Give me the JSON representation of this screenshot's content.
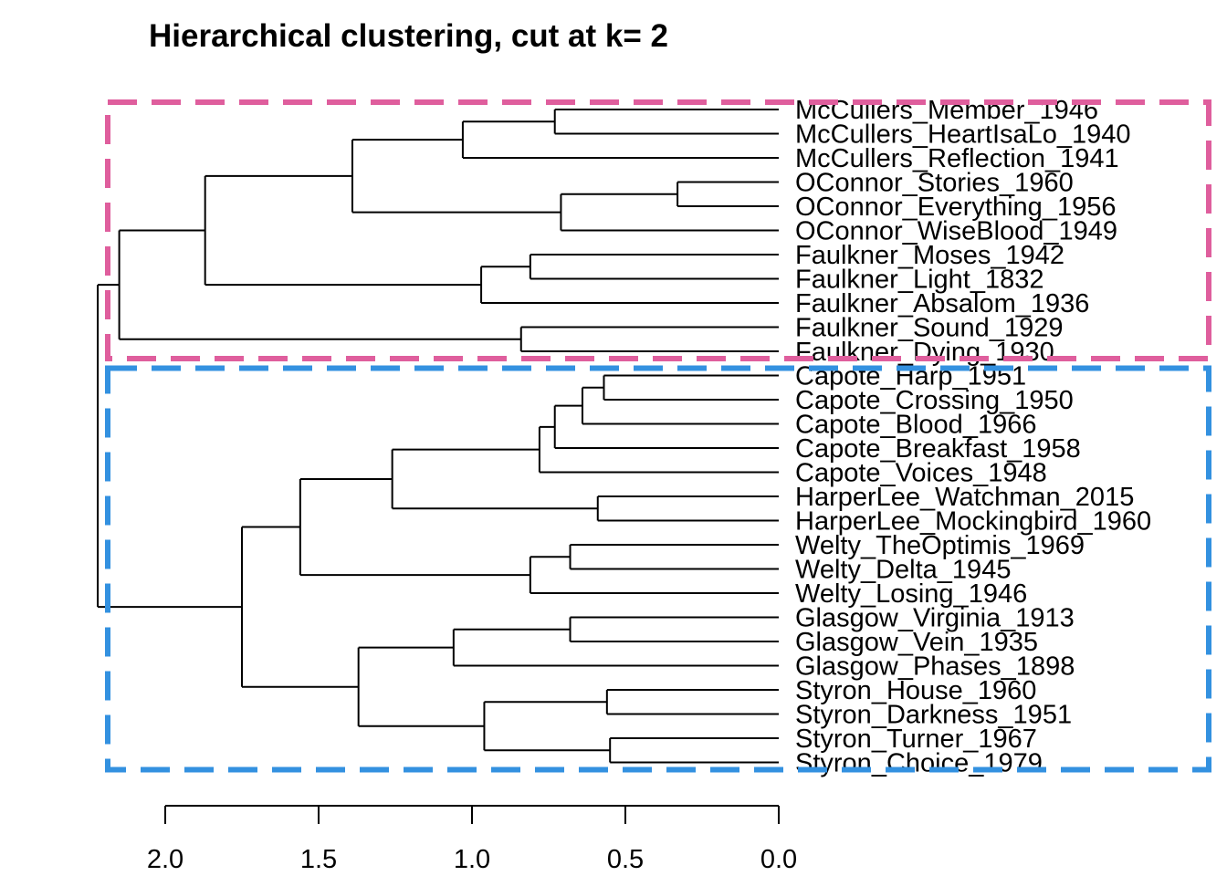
{
  "chart_data": {
    "type": "dendrogram",
    "title": "Hierarchical clustering,  cut at k= 2",
    "orientation": "horizontal",
    "xlim": [
      2.2,
      0.0
    ],
    "xticks": [
      2.0,
      1.5,
      1.0,
      0.5,
      0.0
    ],
    "xtick_labels": [
      "2.0",
      "1.5",
      "1.0",
      "0.5",
      "0.0"
    ],
    "leaves": [
      "McCullers_Member_1946",
      "McCullers_HeartIsaLo_1940",
      "McCullers_Reflection_1941",
      "OConnor_Stories_1960",
      "OConnor_Everything_1956",
      "OConnor_WiseBlood_1949",
      "Faulkner_Moses_1942",
      "Faulkner_Light_1832",
      "Faulkner_Absalom_1936",
      "Faulkner_Sound_1929",
      "Faulkner_Dying_1930",
      "Capote_Harp_1951",
      "Capote_Crossing_1950",
      "Capote_Blood_1966",
      "Capote_Breakfast_1958",
      "Capote_Voices_1948",
      "HarperLee_Watchman_2015",
      "HarperLee_Mockingbird_1960",
      "Welty_TheOptimis_1969",
      "Welty_Delta_1945",
      "Welty_Losing_1946",
      "Glasgow_Virginia_1913",
      "Glasgow_Vein_1935",
      "Glasgow_Phases_1898",
      "Styron_House_1960",
      "Styron_Darkness_1951",
      "Styron_Turner_1967",
      "Styron_Choice_1979"
    ],
    "merges": [
      {
        "id": "n1",
        "children": [
          "L0",
          "L1"
        ],
        "height": 0.73
      },
      {
        "id": "n2",
        "children": [
          "n1",
          "L2"
        ],
        "height": 1.03
      },
      {
        "id": "n3",
        "children": [
          "L3",
          "L4"
        ],
        "height": 0.33
      },
      {
        "id": "n4",
        "children": [
          "n3",
          "L5"
        ],
        "height": 0.71
      },
      {
        "id": "n5",
        "children": [
          "n2",
          "n4"
        ],
        "height": 1.39
      },
      {
        "id": "n6",
        "children": [
          "L6",
          "L7"
        ],
        "height": 0.81
      },
      {
        "id": "n7",
        "children": [
          "n6",
          "L8"
        ],
        "height": 0.97
      },
      {
        "id": "n8",
        "children": [
          "n5",
          "n7"
        ],
        "height": 1.87
      },
      {
        "id": "n9",
        "children": [
          "L9",
          "L10"
        ],
        "height": 0.84
      },
      {
        "id": "n10",
        "children": [
          "n8",
          "n9"
        ],
        "height": 2.15
      },
      {
        "id": "n11",
        "children": [
          "L11",
          "L12"
        ],
        "height": 0.57
      },
      {
        "id": "n12",
        "children": [
          "n11",
          "L13"
        ],
        "height": 0.64
      },
      {
        "id": "n13",
        "children": [
          "n12",
          "L14"
        ],
        "height": 0.73
      },
      {
        "id": "n14",
        "children": [
          "n13",
          "L15"
        ],
        "height": 0.78
      },
      {
        "id": "n15",
        "children": [
          "L16",
          "L17"
        ],
        "height": 0.59
      },
      {
        "id": "n16",
        "children": [
          "n14",
          "n15"
        ],
        "height": 1.26
      },
      {
        "id": "n17",
        "children": [
          "L18",
          "L19"
        ],
        "height": 0.68
      },
      {
        "id": "n18",
        "children": [
          "n17",
          "L20"
        ],
        "height": 0.81
      },
      {
        "id": "n19",
        "children": [
          "n16",
          "n18"
        ],
        "height": 1.56
      },
      {
        "id": "n20",
        "children": [
          "L21",
          "L22"
        ],
        "height": 0.68
      },
      {
        "id": "n21",
        "children": [
          "n20",
          "L23"
        ],
        "height": 1.06
      },
      {
        "id": "n22",
        "children": [
          "L24",
          "L25"
        ],
        "height": 0.56
      },
      {
        "id": "n23",
        "children": [
          "L26",
          "L27"
        ],
        "height": 0.55
      },
      {
        "id": "n24",
        "children": [
          "n22",
          "n23"
        ],
        "height": 0.96
      },
      {
        "id": "n25",
        "children": [
          "n21",
          "n24"
        ],
        "height": 1.37
      },
      {
        "id": "n26",
        "children": [
          "n19",
          "n25"
        ],
        "height": 1.75
      },
      {
        "id": "n27",
        "children": [
          "n10",
          "n26"
        ],
        "height": 2.22
      }
    ],
    "clusters": [
      {
        "leaves": [
          0,
          10
        ],
        "color": "#DF5E9D"
      },
      {
        "leaves": [
          11,
          27
        ],
        "color": "#3391E0"
      }
    ]
  }
}
